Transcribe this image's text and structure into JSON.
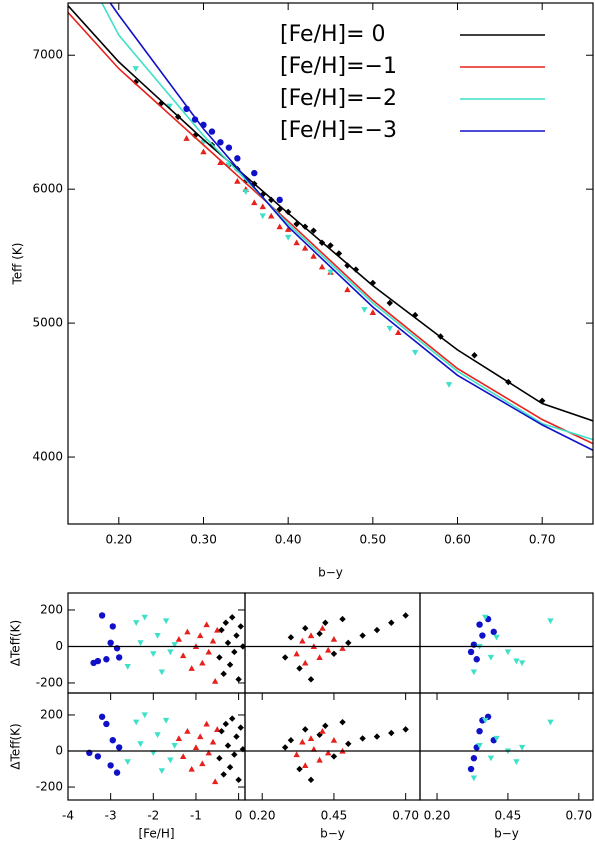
{
  "chart_data": [
    {
      "type": "line",
      "xlabel": "b−y",
      "ylabel": "Teff (K)",
      "xlim": [
        0.14,
        0.76
      ],
      "ylim": [
        3500,
        7390
      ],
      "xticks": [
        {
          "value": 0.2,
          "label": "0.20"
        },
        {
          "value": 0.3,
          "label": "0.30"
        },
        {
          "value": 0.4,
          "label": "0.40"
        },
        {
          "value": 0.5,
          "label": "0.50"
        },
        {
          "value": 0.6,
          "label": "0.60"
        },
        {
          "value": 0.7,
          "label": "0.70"
        }
      ],
      "yticks": [
        4000,
        5000,
        6000,
        7000
      ],
      "legend": "upper right",
      "series": [
        {
          "name": "[Fe/H]=  0",
          "color": "#000000",
          "x": [
            0.14,
            0.2,
            0.3,
            0.4,
            0.5,
            0.6,
            0.7,
            0.76
          ],
          "values": [
            7370,
            6950,
            6370,
            5820,
            5280,
            4800,
            4400,
            4270
          ]
        },
        {
          "name": "[Fe/H]=−1",
          "color": "#e8201c",
          "x": [
            0.14,
            0.2,
            0.3,
            0.4,
            0.5,
            0.6,
            0.7,
            0.76
          ],
          "values": [
            7320,
            6900,
            6330,
            5760,
            5170,
            4660,
            4280,
            4100
          ]
        },
        {
          "name": "[Fe/H]=−2",
          "color": "#3de0c8",
          "x": [
            0.18,
            0.2,
            0.3,
            0.4,
            0.5,
            0.6,
            0.7,
            0.76
          ],
          "values": [
            7390,
            7150,
            6400,
            5740,
            5150,
            4640,
            4250,
            4130
          ]
        },
        {
          "name": "[Fe/H]=−3",
          "color": "#1010c8",
          "x": [
            0.19,
            0.2,
            0.3,
            0.4,
            0.5,
            0.6,
            0.7,
            0.76
          ],
          "values": [
            7390,
            7300,
            6450,
            5720,
            5120,
            4610,
            4240,
            4050
          ]
        }
      ],
      "points": [
        {
          "color": "#000000",
          "marker": "diamond",
          "x": [
            0.22,
            0.25,
            0.27,
            0.29,
            0.31,
            0.33,
            0.34,
            0.35,
            0.36,
            0.37,
            0.38,
            0.39,
            0.4,
            0.41,
            0.42,
            0.43,
            0.44,
            0.45,
            0.46,
            0.47,
            0.48,
            0.5,
            0.52,
            0.55,
            0.58,
            0.62,
            0.66,
            0.7
          ],
          "values": [
            6800,
            6640,
            6540,
            6400,
            6330,
            6180,
            6150,
            6060,
            6040,
            5960,
            5920,
            5850,
            5830,
            5740,
            5720,
            5690,
            5600,
            5580,
            5520,
            5430,
            5400,
            5300,
            5150,
            5060,
            4900,
            4760,
            4560,
            4420
          ]
        },
        {
          "color": "#e8201c",
          "marker": "triangle-up",
          "x": [
            0.28,
            0.3,
            0.32,
            0.34,
            0.35,
            0.36,
            0.37,
            0.38,
            0.39,
            0.4,
            0.41,
            0.42,
            0.43,
            0.44,
            0.45,
            0.47,
            0.5,
            0.53
          ],
          "values": [
            6380,
            6280,
            6200,
            6060,
            6000,
            5900,
            5870,
            5800,
            5720,
            5700,
            5600,
            5560,
            5500,
            5420,
            5380,
            5250,
            5080,
            4930
          ]
        },
        {
          "color": "#3de0c8",
          "marker": "triangle-down",
          "x": [
            0.22,
            0.26,
            0.3,
            0.33,
            0.35,
            0.37,
            0.4,
            0.45,
            0.49,
            0.52,
            0.55,
            0.59
          ],
          "values": [
            6900,
            6620,
            6350,
            6180,
            5980,
            5800,
            5640,
            5380,
            5100,
            4960,
            4780,
            4540
          ]
        },
        {
          "color": "#1010c8",
          "marker": "circle",
          "x": [
            0.28,
            0.29,
            0.3,
            0.31,
            0.32,
            0.33,
            0.34,
            0.36,
            0.39
          ],
          "values": [
            6600,
            6520,
            6480,
            6430,
            6350,
            6310,
            6230,
            6120,
            5920
          ]
        }
      ]
    },
    {
      "type": "scatter",
      "ylabel": "ΔTeff(K)",
      "xlim": [
        -4.0,
        0.15
      ],
      "ylim": [
        -255,
        293
      ],
      "yticks": [
        -200,
        0,
        200
      ],
      "hline": 0,
      "points": [
        {
          "color": "#1010c8",
          "marker": "circle",
          "x": [
            -3.4,
            -3.3,
            -3.2,
            -3.1,
            -3.0,
            -2.95,
            -2.85,
            -2.8
          ],
          "values": [
            -90,
            -80,
            170,
            -70,
            20,
            110,
            -10,
            -60
          ]
        },
        {
          "color": "#3de0c8",
          "marker": "triangle-down",
          "x": [
            -2.6,
            -2.4,
            -2.3,
            -2.2,
            -2.0,
            -1.9,
            -1.8,
            -1.7,
            -1.6,
            -1.5
          ],
          "values": [
            -110,
            130,
            20,
            160,
            -40,
            60,
            -140,
            140,
            -30,
            10
          ]
        },
        {
          "color": "#e8201c",
          "marker": "triangle-up",
          "x": [
            -1.4,
            -1.3,
            -1.2,
            -1.1,
            -1.0,
            -0.9,
            -0.85,
            -0.75,
            -0.7,
            -0.6,
            -0.55,
            -0.5
          ],
          "values": [
            40,
            -50,
            80,
            -120,
            0,
            60,
            -90,
            120,
            -30,
            30,
            -190,
            90
          ]
        },
        {
          "color": "#000000",
          "marker": "diamond",
          "x": [
            -0.45,
            -0.4,
            -0.35,
            -0.3,
            -0.25,
            -0.2,
            -0.15,
            -0.1,
            -0.05,
            0,
            0.05,
            0.1
          ],
          "values": [
            -60,
            90,
            -150,
            130,
            20,
            -100,
            160,
            -30,
            60,
            -180,
            110,
            0
          ]
        }
      ]
    },
    {
      "type": "scatter",
      "xlim": [
        0.14,
        0.75
      ],
      "ylim": [
        -255,
        293
      ],
      "hline": 0,
      "points": [
        {
          "color": "#000000",
          "marker": "diamond",
          "x": [
            0.28,
            0.3,
            0.33,
            0.35,
            0.37,
            0.4,
            0.42,
            0.45,
            0.48,
            0.5,
            0.55,
            0.6,
            0.65,
            0.7
          ],
          "values": [
            -60,
            50,
            -120,
            100,
            -180,
            70,
            130,
            -40,
            150,
            20,
            60,
            90,
            130,
            170
          ]
        },
        {
          "color": "#e8201c",
          "marker": "triangle-up",
          "x": [
            0.32,
            0.34,
            0.35,
            0.37,
            0.38,
            0.4,
            0.41,
            0.43,
            0.45,
            0.48
          ],
          "values": [
            -40,
            30,
            -90,
            60,
            0,
            -60,
            100,
            -20,
            40,
            -10
          ]
        }
      ]
    },
    {
      "type": "scatter",
      "xlim": [
        0.14,
        0.75
      ],
      "ylim": [
        -255,
        293
      ],
      "hline": 0,
      "points": [
        {
          "color": "#1010c8",
          "marker": "circle",
          "x": [
            0.32,
            0.33,
            0.34,
            0.35,
            0.36,
            0.38,
            0.4
          ],
          "values": [
            -30,
            10,
            -70,
            120,
            60,
            150,
            80
          ]
        },
        {
          "color": "#3de0c8",
          "marker": "triangle-down",
          "x": [
            0.33,
            0.35,
            0.37,
            0.39,
            0.41,
            0.45,
            0.48,
            0.5,
            0.6
          ],
          "values": [
            -140,
            0,
            160,
            -60,
            50,
            -30,
            -80,
            -90,
            140
          ]
        }
      ]
    },
    {
      "type": "scatter",
      "xlabel": "[Fe/H]",
      "ylabel": "ΔTeff(K)",
      "xlim": [
        -4.0,
        0.15
      ],
      "ylim": [
        -272,
        322
      ],
      "xticks": [
        -4,
        -3,
        -2,
        -1,
        0
      ],
      "yticks": [
        -200,
        0,
        200
      ],
      "hline": 0,
      "points": [
        {
          "color": "#1010c8",
          "marker": "circle",
          "x": [
            -3.5,
            -3.3,
            -3.2,
            -3.1,
            -3.0,
            -2.95,
            -2.85,
            -2.8
          ],
          "values": [
            -10,
            -30,
            190,
            150,
            -80,
            60,
            -120,
            20
          ]
        },
        {
          "color": "#3de0c8",
          "marker": "triangle-down",
          "x": [
            -2.6,
            -2.4,
            -2.3,
            -2.2,
            -2.0,
            -1.9,
            -1.8,
            -1.7,
            -1.6,
            -1.5
          ],
          "values": [
            -60,
            160,
            40,
            200,
            -10,
            90,
            -110,
            170,
            -50,
            30
          ]
        },
        {
          "color": "#e8201c",
          "marker": "triangle-up",
          "x": [
            -1.4,
            -1.3,
            -1.2,
            -1.1,
            -1.0,
            -0.9,
            -0.85,
            -0.75,
            -0.7,
            -0.6,
            -0.55,
            -0.5
          ],
          "values": [
            70,
            -30,
            110,
            -100,
            20,
            80,
            -70,
            150,
            -10,
            50,
            -170,
            120
          ]
        },
        {
          "color": "#000000",
          "marker": "diamond",
          "x": [
            -0.45,
            -0.4,
            -0.35,
            -0.3,
            -0.25,
            -0.2,
            -0.15,
            -0.1,
            -0.05,
            0,
            0.05,
            0.1
          ],
          "values": [
            -40,
            110,
            -130,
            150,
            30,
            -90,
            180,
            -20,
            80,
            -160,
            130,
            10
          ]
        }
      ]
    },
    {
      "type": "scatter",
      "xlabel": "b−y",
      "xlim": [
        0.14,
        0.75
      ],
      "ylim": [
        -272,
        322
      ],
      "xticks": [
        {
          "value": 0.2,
          "label": "0.20"
        },
        0.45,
        {
          "value": 0.7,
          "label": "0.70"
        }
      ],
      "hline": 0,
      "points": [
        {
          "color": "#000000",
          "marker": "diamond",
          "x": [
            0.28,
            0.3,
            0.33,
            0.35,
            0.37,
            0.4,
            0.42,
            0.45,
            0.48,
            0.5,
            0.55,
            0.6,
            0.65,
            0.7
          ],
          "values": [
            20,
            60,
            -100,
            120,
            -160,
            90,
            140,
            -30,
            160,
            40,
            70,
            80,
            100,
            120
          ]
        },
        {
          "color": "#e8201c",
          "marker": "triangle-up",
          "x": [
            0.32,
            0.34,
            0.35,
            0.37,
            0.38,
            0.4,
            0.41,
            0.43,
            0.45,
            0.48
          ],
          "values": [
            -20,
            50,
            -80,
            70,
            10,
            -50,
            110,
            -10,
            60,
            0
          ]
        }
      ]
    },
    {
      "type": "scatter",
      "xlabel": "b−y",
      "xlim": [
        0.14,
        0.75
      ],
      "ylim": [
        -272,
        322
      ],
      "xticks": [
        {
          "value": 0.2,
          "label": "0.20"
        },
        0.45,
        {
          "value": 0.7,
          "label": "0.70"
        }
      ],
      "hline": 0,
      "points": [
        {
          "color": "#1010c8",
          "marker": "circle",
          "x": [
            0.32,
            0.33,
            0.34,
            0.35,
            0.36,
            0.38,
            0.4
          ],
          "values": [
            -100,
            -40,
            20,
            110,
            170,
            190,
            60
          ]
        },
        {
          "color": "#3de0c8",
          "marker": "triangle-down",
          "x": [
            0.33,
            0.35,
            0.37,
            0.39,
            0.41,
            0.45,
            0.48,
            0.5,
            0.6
          ],
          "values": [
            -150,
            30,
            170,
            -40,
            70,
            0,
            -60,
            20,
            160
          ]
        }
      ]
    }
  ]
}
